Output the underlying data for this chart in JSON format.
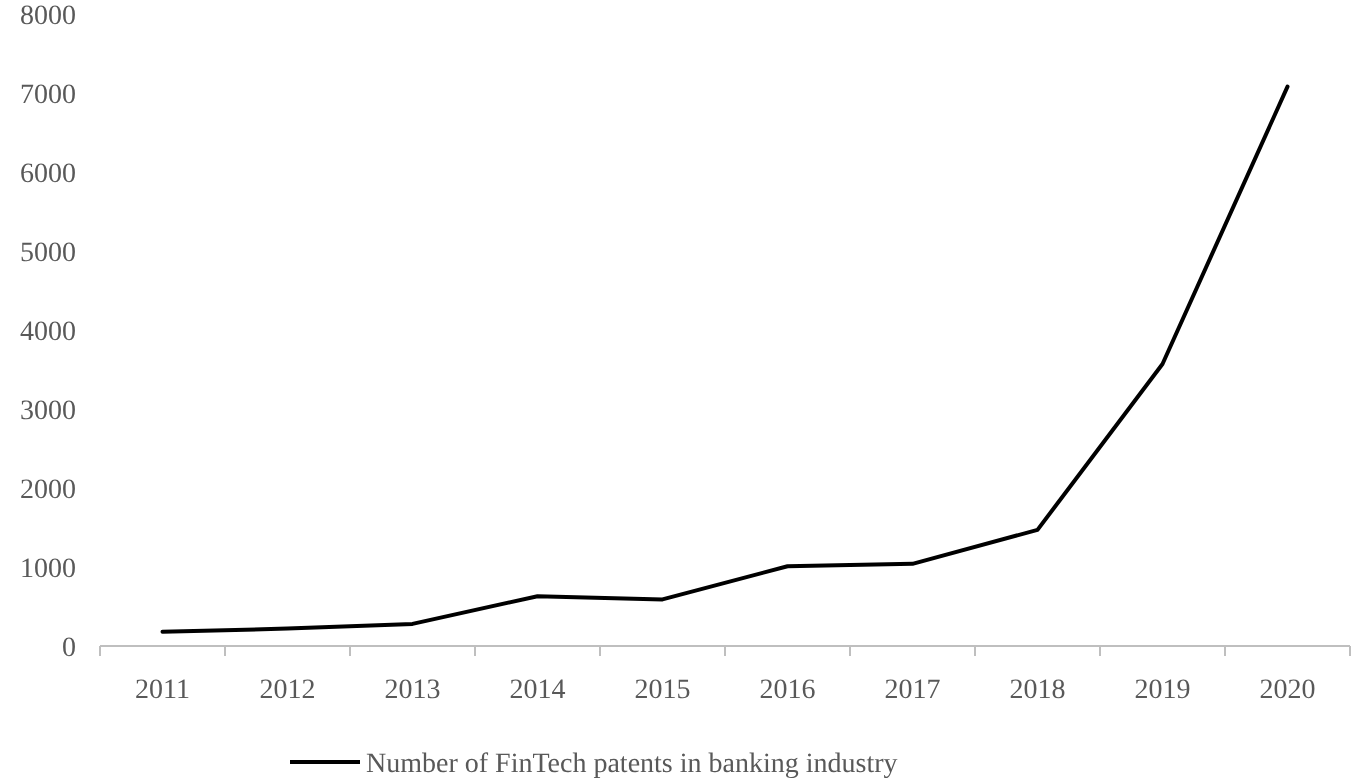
{
  "chart_data": {
    "type": "line",
    "categories": [
      "2011",
      "2012",
      "2013",
      "2014",
      "2015",
      "2016",
      "2017",
      "2018",
      "2019",
      "2020"
    ],
    "series": [
      {
        "name": "Number of FinTech patents in banking industry",
        "color": "#000000",
        "values": [
          180,
          220,
          280,
          630,
          590,
          1010,
          1040,
          1470,
          3570,
          7080
        ]
      }
    ],
    "ylim": [
      0,
      8000
    ],
    "yticks": [
      0,
      1000,
      2000,
      3000,
      4000,
      5000,
      6000,
      7000,
      8000
    ],
    "grid": false,
    "legend": "bottom",
    "marker": "none",
    "line_style": "solid"
  }
}
